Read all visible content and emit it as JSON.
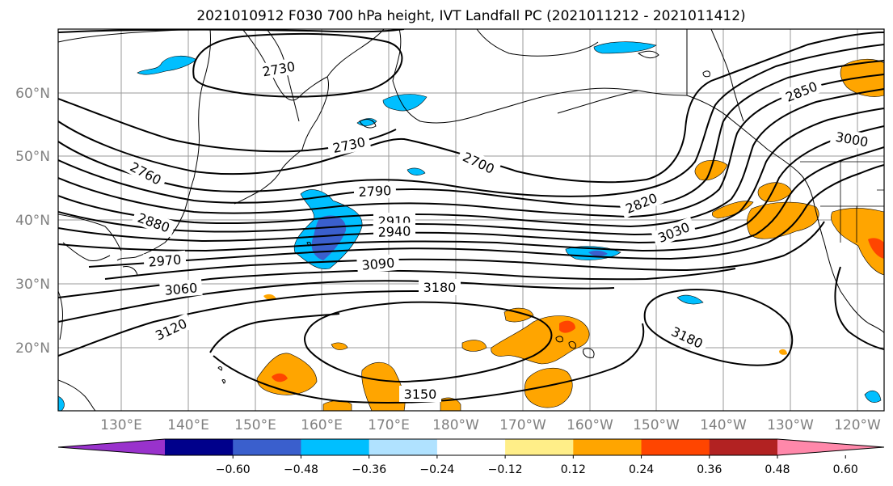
{
  "title": "2021010912 F030 700 hPa height, IVT Landfall PC (2021011212 - 2021011412)",
  "map": {
    "lon_labels": [
      "130°E",
      "140°E",
      "150°E",
      "160°E",
      "170°E",
      "180°W",
      "170°W",
      "160°W",
      "150°W",
      "140°W",
      "130°W",
      "120°W"
    ],
    "lat_labels": [
      "60°N",
      "50°N",
      "40°N",
      "30°N",
      "20°N"
    ],
    "contour_labels": [
      {
        "text": "2730"
      },
      {
        "text": "2730"
      },
      {
        "text": "2700"
      },
      {
        "text": "2760"
      },
      {
        "text": "2790"
      },
      {
        "text": "2820"
      },
      {
        "text": "2850"
      },
      {
        "text": "3000"
      },
      {
        "text": "2880"
      },
      {
        "text": "2910"
      },
      {
        "text": "2940"
      },
      {
        "text": "3030"
      },
      {
        "text": "2970"
      },
      {
        "text": "3090"
      },
      {
        "text": "3060"
      },
      {
        "text": "3180"
      },
      {
        "text": "3120"
      },
      {
        "text": "3180"
      },
      {
        "text": "3150"
      }
    ]
  },
  "colorbar": {
    "ticks": [
      "−0.60",
      "−0.48",
      "−0.36",
      "−0.24",
      "−0.12",
      "0.12",
      "0.24",
      "0.36",
      "0.48",
      "0.60"
    ],
    "colors": [
      "#9932cc",
      "#00008b",
      "#3a5fcd",
      "#00bfff",
      "#b0e2ff",
      "#ffffff",
      "#ffee88",
      "#ffa500",
      "#ff4500",
      "#b22222",
      "#ff88aa"
    ]
  }
}
